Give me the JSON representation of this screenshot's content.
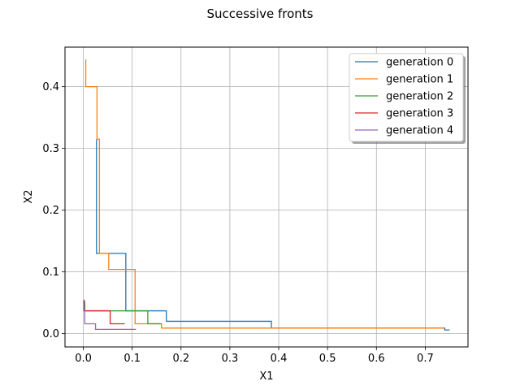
{
  "chart_data": {
    "type": "line",
    "title": "Successive fronts",
    "xlabel": "X1",
    "ylabel": "X2",
    "xlim": [
      -0.0375,
      0.7875
    ],
    "ylim": [
      -0.0215,
      0.464
    ],
    "xticks": [
      {
        "value": 0.0,
        "label": "0.0"
      },
      {
        "value": 0.1,
        "label": "0.1"
      },
      {
        "value": 0.2,
        "label": "0.2"
      },
      {
        "value": 0.3,
        "label": "0.3"
      },
      {
        "value": 0.4,
        "label": "0.4"
      },
      {
        "value": 0.5,
        "label": "0.5"
      },
      {
        "value": 0.6,
        "label": "0.6"
      },
      {
        "value": 0.7,
        "label": "0.7"
      }
    ],
    "yticks": [
      {
        "value": 0.0,
        "label": "0.0"
      },
      {
        "value": 0.1,
        "label": "0.1"
      },
      {
        "value": 0.2,
        "label": "0.2"
      },
      {
        "value": 0.3,
        "label": "0.3"
      },
      {
        "value": 0.4,
        "label": "0.4"
      }
    ],
    "grid": true,
    "legend_position": "top-right",
    "series": [
      {
        "name": "generation 0",
        "color": "#1f77b4",
        "x": [
          0.027,
          0.027,
          0.087,
          0.087,
          0.17,
          0.17,
          0.385,
          0.385,
          0.74,
          0.74,
          0.75
        ],
        "y": [
          0.315,
          0.13,
          0.13,
          0.037,
          0.037,
          0.02,
          0.02,
          0.009,
          0.009,
          0.006,
          0.006
        ]
      },
      {
        "name": "generation 1",
        "color": "#ff7f0e",
        "x": [
          0.005,
          0.005,
          0.028,
          0.028,
          0.033,
          0.033,
          0.052,
          0.052,
          0.106,
          0.106,
          0.16,
          0.16,
          0.738
        ],
        "y": [
          0.444,
          0.4,
          0.4,
          0.315,
          0.315,
          0.13,
          0.13,
          0.104,
          0.104,
          0.016,
          0.016,
          0.009,
          0.009
        ]
      },
      {
        "name": "generation 2",
        "color": "#2ca02c",
        "x": [
          0.003,
          0.003,
          0.132,
          0.132,
          0.16
        ],
        "y": [
          0.052,
          0.037,
          0.037,
          0.016,
          0.016
        ]
      },
      {
        "name": "generation 3",
        "color": "#d62728",
        "x": [
          0.002,
          0.002,
          0.055,
          0.055,
          0.085
        ],
        "y": [
          0.055,
          0.037,
          0.037,
          0.016,
          0.016
        ]
      },
      {
        "name": "generation 4",
        "color": "#9467bd",
        "x": [
          0.001,
          0.001,
          0.003,
          0.003,
          0.025,
          0.025,
          0.108
        ],
        "y": [
          0.055,
          0.037,
          0.037,
          0.016,
          0.016,
          0.007,
          0.007
        ]
      }
    ]
  }
}
